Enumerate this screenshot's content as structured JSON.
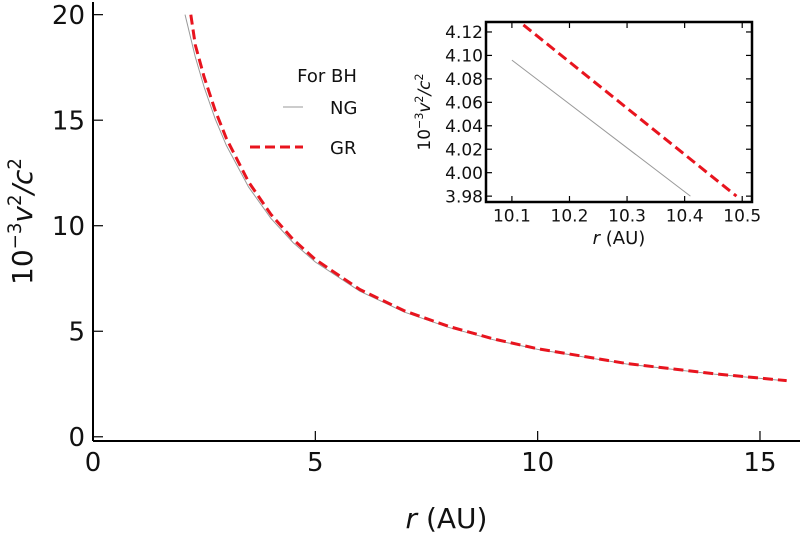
{
  "chart_data": [
    {
      "type": "line",
      "xlabel": [
        "r",
        " (AU)"
      ],
      "ylabel": [
        "10",
        "−3",
        "v",
        "2",
        "/c",
        "2"
      ],
      "legend_title": "For BH",
      "xlim": [
        0,
        15.9
      ],
      "ylim": [
        -0.2,
        20.6
      ],
      "xticks": [
        0,
        5,
        10,
        15
      ],
      "yticks": [
        0,
        5,
        10,
        15,
        20
      ],
      "series": [
        {
          "name": "NG",
          "color": "#999999",
          "dashed": false,
          "x": [
            2.07,
            2.3,
            2.5,
            2.75,
            3,
            3.5,
            4,
            4.5,
            5,
            6,
            7,
            8,
            9,
            10,
            12,
            14,
            15.6
          ],
          "values": [
            20.0,
            18.0,
            16.56,
            15.05,
            13.8,
            11.83,
            10.35,
            9.2,
            8.28,
            6.9,
            5.91,
            5.18,
            4.6,
            4.14,
            3.45,
            2.96,
            2.65
          ]
        },
        {
          "name": "GR",
          "color": "#e8141e",
          "dashed": true,
          "x": [
            2.2,
            2.3,
            2.5,
            2.75,
            3,
            3.5,
            4,
            4.5,
            5,
            6,
            7,
            8,
            9,
            10,
            12,
            14,
            15.6
          ],
          "values": [
            20.0,
            18.57,
            17.04,
            15.45,
            14.13,
            12.07,
            10.54,
            9.35,
            8.4,
            6.98,
            5.97,
            5.23,
            4.64,
            4.17,
            3.47,
            2.98,
            2.66
          ]
        }
      ]
    },
    {
      "type": "line",
      "xlabel": [
        "r",
        " (AU)"
      ],
      "ylabel": [
        "10",
        "−3",
        "v",
        "2",
        "/c",
        "2"
      ],
      "xlim": [
        10.055,
        10.517
      ],
      "ylim": [
        3.975,
        4.1285
      ],
      "xticks": [
        10.1,
        10.2,
        10.3,
        10.4,
        10.5
      ],
      "yticks": [
        {
          "value": 3.98,
          "label": "3.98"
        },
        {
          "value": 4.0,
          "label": "4.00"
        },
        {
          "value": 4.02,
          "label": "4.02"
        },
        {
          "value": 4.04,
          "label": "4.04"
        },
        {
          "value": 4.06,
          "label": "4.06"
        },
        {
          "value": 4.08,
          "label": "4.08"
        },
        {
          "value": 4.1,
          "label": "4.10"
        },
        {
          "value": 4.12,
          "label": "4.12"
        }
      ],
      "series": [
        {
          "name": "NG",
          "color": "#999999",
          "dashed": false,
          "x": [
            10.1,
            10.41
          ],
          "values": [
            4.096,
            3.98
          ]
        },
        {
          "name": "GR",
          "color": "#e8141e",
          "dashed": true,
          "x": [
            10.12,
            10.49
          ],
          "values": [
            4.126,
            3.98
          ]
        }
      ]
    }
  ]
}
